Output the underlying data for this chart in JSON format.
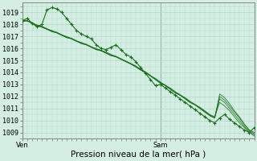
{
  "title": "Pression niveau de la mer( hPa )",
  "ylabel_values": [
    1009,
    1010,
    1011,
    1012,
    1013,
    1014,
    1015,
    1016,
    1017,
    1018,
    1019
  ],
  "ylim": [
    1008.5,
    1019.8
  ],
  "xlim": [
    0,
    47
  ],
  "background_color": "#d4eee4",
  "grid_color": "#b0d8c8",
  "line_color": "#1a6e1a",
  "marker_color": "#1a6e1a",
  "ven_x": 0,
  "sam_x": 28,
  "tick_label_fontsize": 6.0,
  "xlabel_fontsize": 7.5,
  "series": {
    "main": [
      1018.3,
      1018.5,
      1018.1,
      1017.8,
      1018.0,
      1019.2,
      1019.4,
      1019.3,
      1019.0,
      1018.5,
      1018.0,
      1017.5,
      1017.2,
      1017.0,
      1016.8,
      1016.3,
      1016.0,
      1015.9,
      1016.1,
      1016.3,
      1015.9,
      1015.5,
      1015.3,
      1014.9,
      1014.4,
      1013.9,
      1013.4,
      1012.9,
      1013.0,
      1012.7,
      1012.4,
      1012.1,
      1011.8,
      1011.5,
      1011.2,
      1010.9,
      1010.6,
      1010.3,
      1010.0,
      1009.8,
      1010.2,
      1010.5,
      1010.1,
      1009.8,
      1009.5,
      1009.2,
      1009.0,
      1009.4
    ],
    "env1": [
      1018.3,
      1018.3,
      1018.1,
      1017.9,
      1017.8,
      1017.6,
      1017.5,
      1017.3,
      1017.1,
      1017.0,
      1016.8,
      1016.6,
      1016.5,
      1016.3,
      1016.1,
      1016.0,
      1015.8,
      1015.7,
      1015.5,
      1015.3,
      1015.1,
      1014.9,
      1014.7,
      1014.5,
      1014.2,
      1014.0,
      1013.7,
      1013.5,
      1013.2,
      1012.9,
      1012.7,
      1012.4,
      1012.1,
      1011.9,
      1011.6,
      1011.3,
      1011.1,
      1010.8,
      1010.5,
      1010.3,
      1011.5,
      1011.2,
      1010.8,
      1010.3,
      1009.8,
      1009.4,
      1009.0,
      1008.7
    ],
    "env2": [
      1018.3,
      1018.3,
      1018.1,
      1017.9,
      1017.8,
      1017.6,
      1017.4,
      1017.3,
      1017.1,
      1016.9,
      1016.8,
      1016.6,
      1016.4,
      1016.3,
      1016.1,
      1015.9,
      1015.8,
      1015.6,
      1015.4,
      1015.3,
      1015.1,
      1014.9,
      1014.7,
      1014.5,
      1014.2,
      1014.0,
      1013.7,
      1013.4,
      1013.1,
      1012.9,
      1012.6,
      1012.3,
      1012.1,
      1011.8,
      1011.5,
      1011.3,
      1011.0,
      1010.7,
      1010.4,
      1010.2,
      1011.8,
      1011.5,
      1011.0,
      1010.5,
      1010.0,
      1009.5,
      1009.1,
      1008.8
    ],
    "env3": [
      1018.3,
      1018.3,
      1018.15,
      1017.95,
      1017.85,
      1017.65,
      1017.45,
      1017.35,
      1017.15,
      1016.95,
      1016.85,
      1016.65,
      1016.45,
      1016.35,
      1016.15,
      1015.95,
      1015.85,
      1015.65,
      1015.45,
      1015.35,
      1015.15,
      1014.95,
      1014.75,
      1014.55,
      1014.25,
      1014.05,
      1013.75,
      1013.45,
      1013.15,
      1012.95,
      1012.65,
      1012.35,
      1012.15,
      1011.85,
      1011.55,
      1011.35,
      1011.05,
      1010.75,
      1010.45,
      1010.25,
      1012.0,
      1011.7,
      1011.2,
      1010.7,
      1010.2,
      1009.65,
      1009.2,
      1008.9
    ],
    "env4": [
      1018.3,
      1018.3,
      1018.1,
      1017.9,
      1017.75,
      1017.6,
      1017.4,
      1017.3,
      1017.1,
      1016.9,
      1016.8,
      1016.6,
      1016.4,
      1016.3,
      1016.1,
      1015.9,
      1015.8,
      1015.6,
      1015.4,
      1015.3,
      1015.1,
      1014.9,
      1014.7,
      1014.45,
      1014.2,
      1013.95,
      1013.7,
      1013.4,
      1013.1,
      1012.9,
      1012.6,
      1012.3,
      1012.1,
      1011.8,
      1011.5,
      1011.3,
      1011.0,
      1010.7,
      1010.4,
      1010.2,
      1012.2,
      1011.9,
      1011.4,
      1010.8,
      1010.3,
      1009.7,
      1009.2,
      1009.0
    ]
  }
}
